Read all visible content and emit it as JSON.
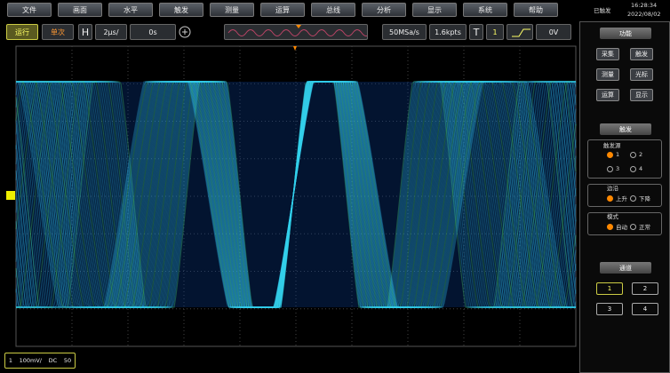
{
  "menu": [
    "文件",
    "画面",
    "水平",
    "触发",
    "测量",
    "运算",
    "总线",
    "分析",
    "显示",
    "系统",
    "帮助"
  ],
  "status": {
    "state": "已触发",
    "time": "16:28:34",
    "date": "2022/08/02"
  },
  "toolbar": {
    "run": "运行",
    "single": "单次",
    "h": "H",
    "timebase": "2μs/",
    "delay": "0s",
    "sample_rate": "50MSa/s",
    "memory": "1.6kpts",
    "t": "T",
    "trigger_source": "1",
    "trigger_level": "0V"
  },
  "panel": {
    "function": {
      "title": "功能",
      "buttons": [
        "采集",
        "触发",
        "测量",
        "光标",
        "运算",
        "显示"
      ]
    },
    "trigger": {
      "title": "触发",
      "source_label": "触发源",
      "sources": [
        "1",
        "2",
        "3",
        "4"
      ],
      "edge_label": "边沿",
      "edges": [
        "上升",
        "下降"
      ],
      "mode_label": "模式",
      "modes": [
        "自动",
        "正常"
      ]
    },
    "channels": {
      "title": "通道",
      "buttons": [
        "1",
        "2",
        "3",
        "4"
      ]
    }
  },
  "channel_info": {
    "channel": "1",
    "scale": "100mV/",
    "coupling": "DC",
    "impedance": "50"
  }
}
